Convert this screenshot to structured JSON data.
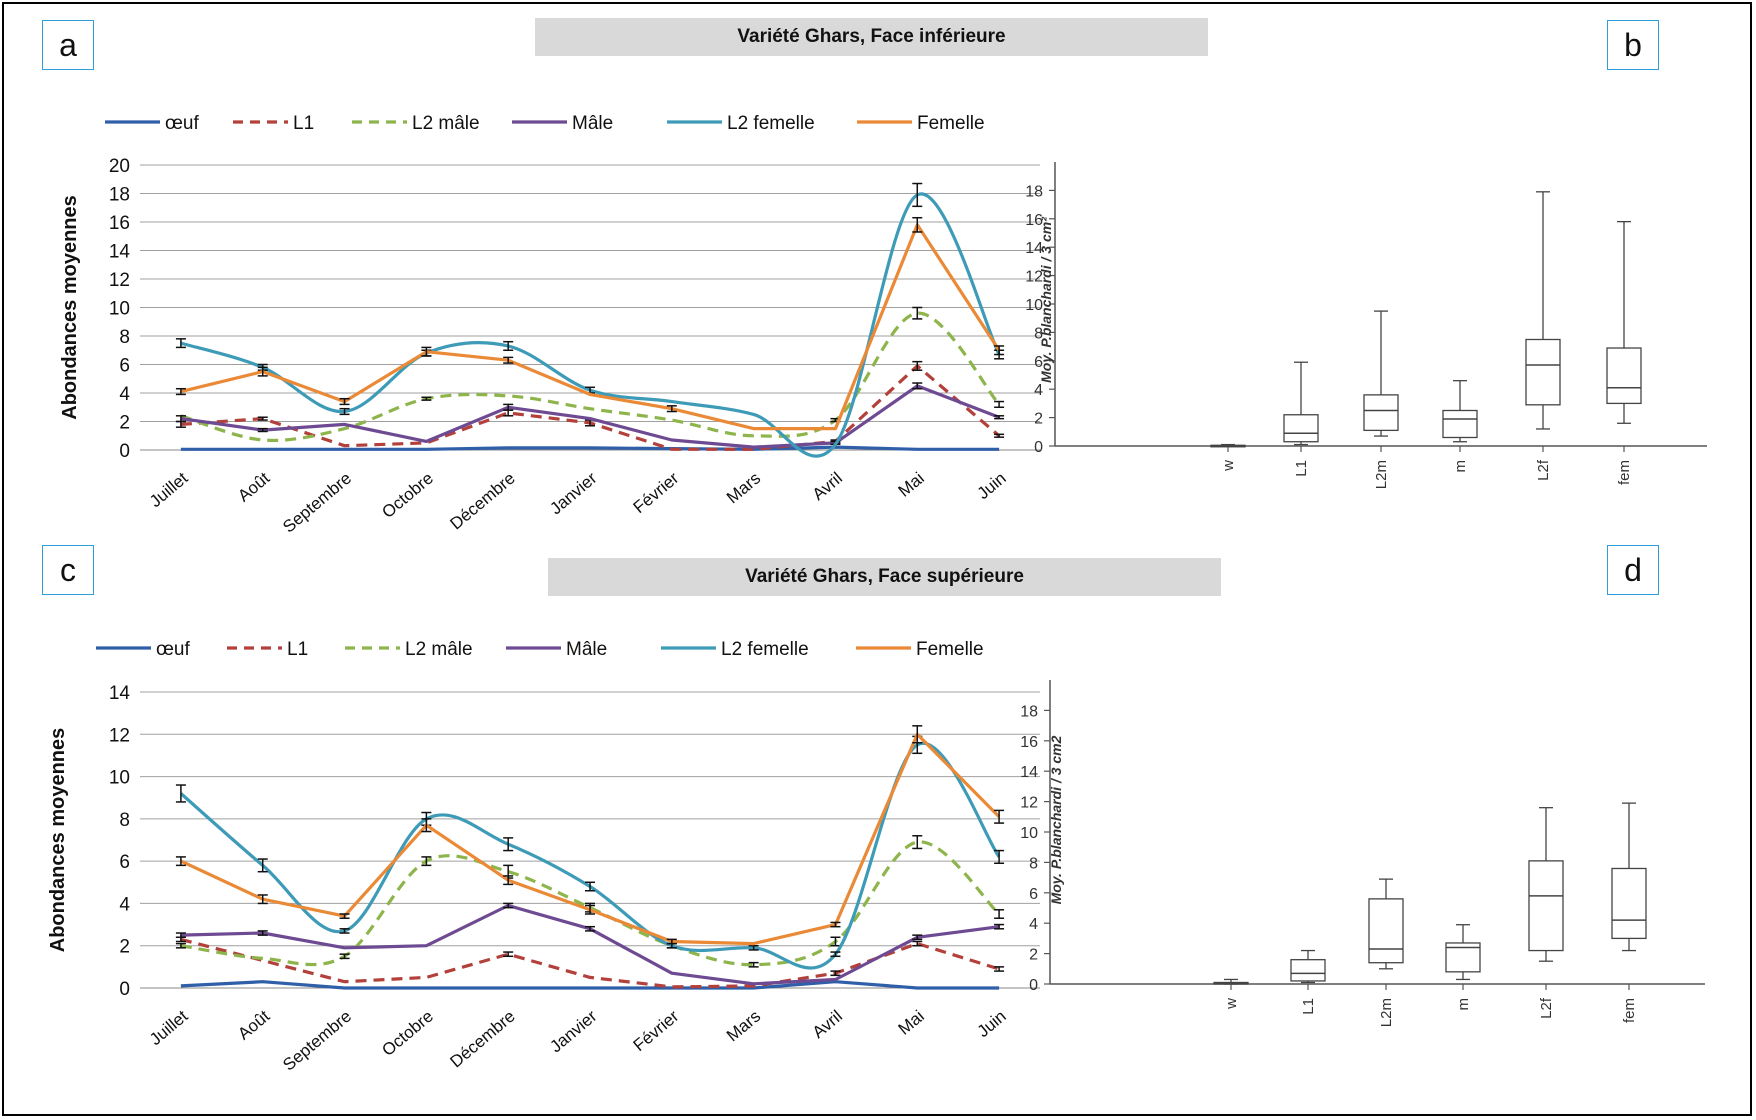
{
  "colors": {
    "oeuf": "#2f5fa8",
    "L1": "#b3403a",
    "L2 male": "#8db54b",
    "Male": "#6d4a92",
    "L2 femelle": "#3e9bb8",
    "Femelle": "#ea8936"
  },
  "panels": {
    "a": {
      "label": "a",
      "title": "Variété Ghars, Face inférieure"
    },
    "b": {
      "label": "b"
    },
    "c": {
      "label": "c",
      "title": "Variété Ghars, Face supérieure"
    },
    "d": {
      "label": "d"
    }
  },
  "chart_data": [
    {
      "id": "a",
      "type": "line",
      "title": "Variété Ghars, Face inférieure",
      "xlabel": "",
      "ylabel": "Abondances moyennes",
      "ylim": [
        0,
        20
      ],
      "yticks": [
        0,
        2,
        4,
        6,
        8,
        10,
        12,
        14,
        16,
        18,
        20
      ],
      "grid": true,
      "legend_position": "top",
      "categories": [
        "Juillet",
        "Août",
        "Septembre",
        "Octobre",
        "Décembre",
        "Janvier",
        "Février",
        "Mars",
        "Avril",
        "Mai",
        "Juin"
      ],
      "series": [
        {
          "name": "œuf",
          "color_key": "oeuf",
          "style": "solid",
          "smooth": false,
          "values": [
            0.05,
            0.05,
            0.05,
            0.05,
            0.15,
            0.15,
            0.1,
            0.05,
            0.2,
            0.05,
            0.05
          ],
          "errors": []
        },
        {
          "name": "L1",
          "color_key": "L1",
          "style": "dashed",
          "smooth": false,
          "values": [
            1.8,
            2.2,
            0.3,
            0.5,
            2.6,
            1.9,
            0.05,
            0.05,
            0.6,
            5.9,
            1.0
          ],
          "errors": [
            0.2,
            0.1,
            0,
            0,
            0.2,
            0.2,
            0,
            0,
            0.1,
            0.3,
            0.1
          ]
        },
        {
          "name": "L2 mâle",
          "color_key": "L2 male",
          "style": "dashed",
          "smooth": true,
          "values": [
            2.4,
            0.7,
            1.5,
            3.6,
            3.8,
            2.9,
            2.1,
            1.0,
            2.1,
            9.6,
            3.2
          ],
          "errors": [
            0,
            0,
            0,
            0.1,
            0,
            0,
            0,
            0,
            0.1,
            0.4,
            0.2
          ]
        },
        {
          "name": "Mâle",
          "color_key": "Male",
          "style": "solid",
          "smooth": false,
          "values": [
            2.2,
            1.4,
            1.8,
            0.6,
            3.0,
            2.2,
            0.7,
            0.2,
            0.5,
            4.5,
            2.3
          ],
          "errors": [
            0.2,
            0.1,
            0,
            0,
            0.2,
            0,
            0,
            0,
            0.1,
            0.2,
            0.1
          ]
        },
        {
          "name": "L2 femelle",
          "color_key": "L2 femelle",
          "style": "solid",
          "smooth": true,
          "values": [
            7.5,
            5.8,
            2.7,
            6.8,
            7.3,
            4.2,
            3.4,
            2.5,
            0.4,
            17.9,
            6.7
          ],
          "errors": [
            0.3,
            0.2,
            0.2,
            0.2,
            0.3,
            0.2,
            0,
            0,
            0,
            0.8,
            0.3
          ]
        },
        {
          "name": "Femelle",
          "color_key": "Femelle",
          "style": "solid",
          "smooth": false,
          "values": [
            4.1,
            5.5,
            3.4,
            6.9,
            6.3,
            3.9,
            2.9,
            1.5,
            1.5,
            15.8,
            7.0
          ],
          "errors": [
            0.2,
            0.3,
            0.2,
            0.3,
            0.2,
            0,
            0.2,
            0,
            0,
            0.5,
            0.3
          ]
        }
      ]
    },
    {
      "id": "b",
      "type": "boxplot",
      "ylabel": "Moy. P.blanchardi / 3 cm²",
      "ylim": [
        0,
        20
      ],
      "yticks": [
        0,
        2,
        4,
        6,
        8,
        10,
        12,
        14,
        16,
        18
      ],
      "categories": [
        "w",
        "L1",
        "L2m",
        "m",
        "L2f",
        "fem"
      ],
      "boxes": [
        {
          "min": 0,
          "q1": 0,
          "median": 0,
          "q3": 0.05,
          "max": 0.1
        },
        {
          "min": 0.1,
          "q1": 0.3,
          "median": 0.9,
          "q3": 2.2,
          "max": 5.9
        },
        {
          "min": 0.7,
          "q1": 1.1,
          "median": 2.5,
          "q3": 3.6,
          "max": 9.5
        },
        {
          "min": 0.3,
          "q1": 0.6,
          "median": 1.9,
          "q3": 2.5,
          "max": 4.6
        },
        {
          "min": 1.2,
          "q1": 2.9,
          "median": 5.7,
          "q3": 7.5,
          "max": 17.9
        },
        {
          "min": 1.6,
          "q1": 3.0,
          "median": 4.1,
          "q3": 6.9,
          "max": 15.8
        }
      ]
    },
    {
      "id": "c",
      "type": "line",
      "title": "Variété Ghars, Face supérieure",
      "xlabel": "",
      "ylabel": "Abondances moyennes",
      "ylim": [
        0,
        14
      ],
      "yticks": [
        0,
        2,
        4,
        6,
        8,
        10,
        12,
        14
      ],
      "grid": true,
      "legend_position": "top",
      "categories": [
        "Juillet",
        "Août",
        "Septembre",
        "Octobre",
        "Décembre",
        "Janvier",
        "Février",
        "Mars",
        "Avril",
        "Mai",
        "Juin"
      ],
      "series": [
        {
          "name": "œuf",
          "color_key": "oeuf",
          "style": "solid",
          "smooth": false,
          "values": [
            0.1,
            0.3,
            0.0,
            0.0,
            0.0,
            0.0,
            0.0,
            0.0,
            0.3,
            0.0,
            0.0
          ],
          "errors": []
        },
        {
          "name": "L1",
          "color_key": "L1",
          "style": "dashed",
          "smooth": false,
          "values": [
            2.3,
            1.3,
            0.3,
            0.5,
            1.6,
            0.5,
            0.05,
            0.1,
            0.7,
            2.1,
            0.9
          ],
          "errors": [
            0.1,
            0,
            0,
            0,
            0.1,
            0,
            0,
            0,
            0.1,
            0.1,
            0.1
          ]
        },
        {
          "name": "L2 mâle",
          "color_key": "L2 male",
          "style": "dashed",
          "smooth": true,
          "values": [
            2.0,
            1.4,
            1.5,
            6.0,
            5.5,
            3.8,
            2.0,
            1.1,
            2.2,
            6.9,
            3.5
          ],
          "errors": [
            0.1,
            0,
            0.1,
            0.2,
            0.3,
            0.2,
            0.1,
            0.1,
            0.2,
            0.3,
            0.2
          ]
        },
        {
          "name": "Mâle",
          "color_key": "Male",
          "style": "solid",
          "smooth": false,
          "values": [
            2.5,
            2.6,
            1.9,
            2.0,
            3.9,
            2.8,
            0.7,
            0.2,
            0.4,
            2.4,
            2.9
          ],
          "errors": [
            0.1,
            0.1,
            0,
            0,
            0.1,
            0.1,
            0,
            0,
            0,
            0.1,
            0.1
          ]
        },
        {
          "name": "L2 femelle",
          "color_key": "L2 femelle",
          "style": "solid",
          "smooth": true,
          "values": [
            9.2,
            5.8,
            2.7,
            8.0,
            6.8,
            4.8,
            2.0,
            1.9,
            1.6,
            11.5,
            6.2
          ],
          "errors": [
            0.4,
            0.3,
            0.1,
            0.3,
            0.3,
            0.2,
            0.1,
            0.1,
            0.1,
            0.4,
            0.3
          ]
        },
        {
          "name": "Femelle",
          "color_key": "Femelle",
          "style": "solid",
          "smooth": false,
          "values": [
            6.0,
            4.2,
            3.4,
            7.7,
            5.1,
            3.7,
            2.2,
            2.1,
            3.0,
            12.0,
            8.1
          ],
          "errors": [
            0.2,
            0.2,
            0.1,
            0.3,
            0.2,
            0.2,
            0.1,
            0,
            0.1,
            0.4,
            0.3
          ]
        }
      ]
    },
    {
      "id": "d",
      "type": "boxplot",
      "ylabel": "Moy. P.blanchardi / 3 cm2",
      "ylim": [
        0,
        20
      ],
      "yticks": [
        0,
        2,
        4,
        6,
        8,
        10,
        12,
        14,
        16,
        18
      ],
      "categories": [
        "w",
        "L1",
        "L2m",
        "m",
        "L2f",
        "fem"
      ],
      "boxes": [
        {
          "min": 0,
          "q1": 0,
          "median": 0.05,
          "q3": 0.1,
          "max": 0.3
        },
        {
          "min": 0.1,
          "q1": 0.2,
          "median": 0.7,
          "q3": 1.6,
          "max": 2.2
        },
        {
          "min": 1.0,
          "q1": 1.4,
          "median": 2.3,
          "q3": 5.6,
          "max": 6.9
        },
        {
          "min": 0.3,
          "q1": 0.8,
          "median": 2.4,
          "q3": 2.7,
          "max": 3.9
        },
        {
          "min": 1.5,
          "q1": 2.2,
          "median": 5.8,
          "q3": 8.1,
          "max": 11.6
        },
        {
          "min": 2.2,
          "q1": 3.0,
          "median": 4.2,
          "q3": 7.6,
          "max": 11.9
        }
      ]
    }
  ]
}
